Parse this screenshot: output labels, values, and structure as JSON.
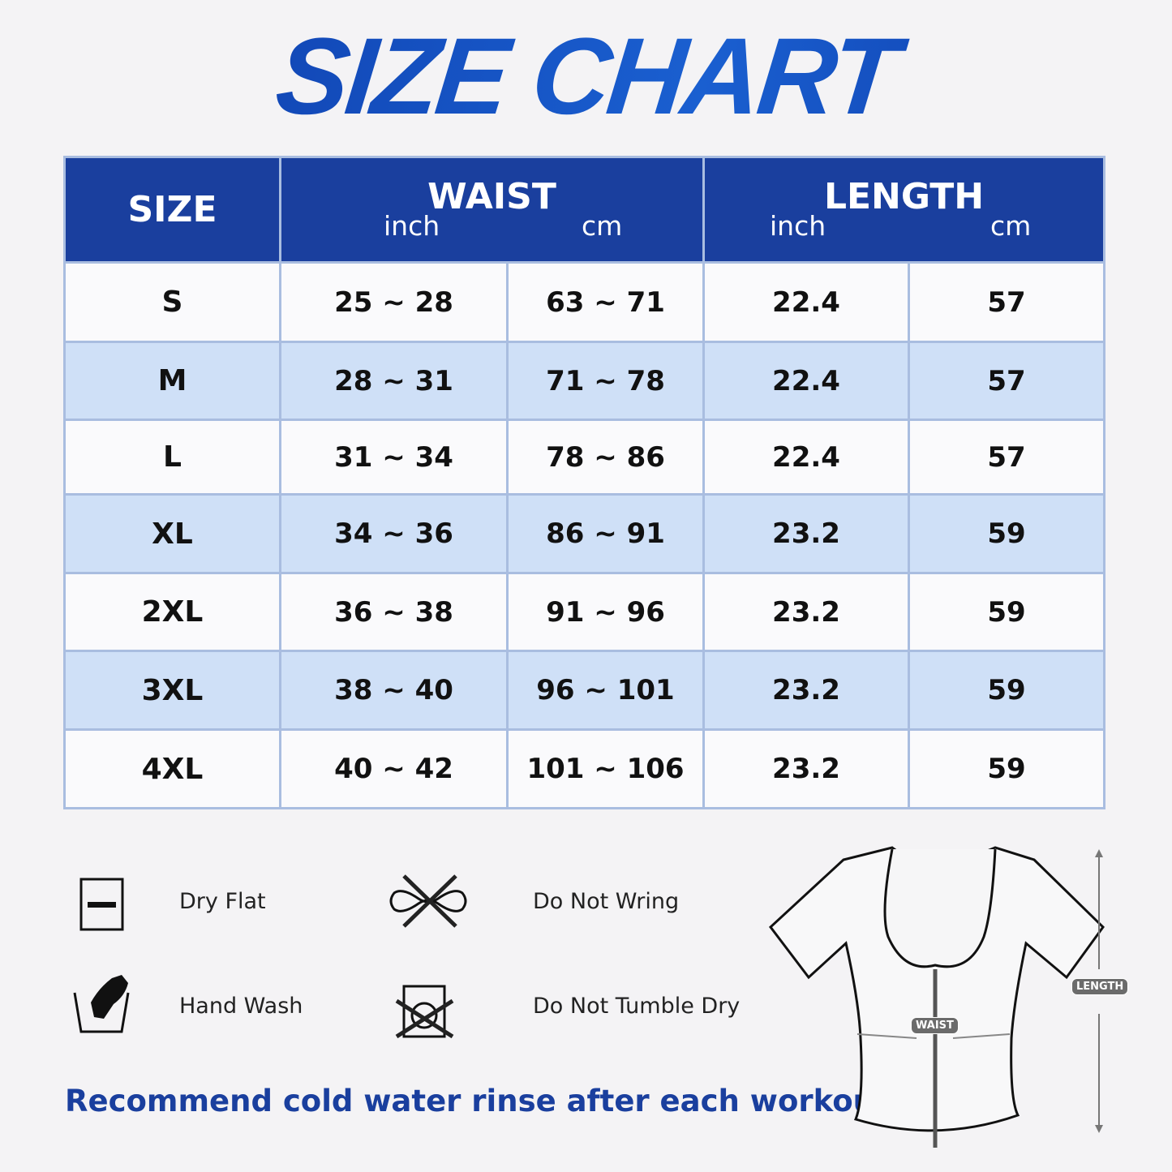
{
  "title": "SIZE CHART",
  "header": {
    "size": "SIZE",
    "waist": "WAIST",
    "length": "LENGTH",
    "inch": "inch",
    "cm": "cm"
  },
  "rows": [
    {
      "size": "S",
      "waist_inch": "25 ~ 28",
      "waist_cm": "63 ~ 71",
      "length_inch": "22.4",
      "length_cm": "57"
    },
    {
      "size": "M",
      "waist_inch": "28 ~ 31",
      "waist_cm": "71 ~ 78",
      "length_inch": "22.4",
      "length_cm": "57"
    },
    {
      "size": "L",
      "waist_inch": "31 ~ 34",
      "waist_cm": "78 ~ 86",
      "length_inch": "22.4",
      "length_cm": "57"
    },
    {
      "size": "XL",
      "waist_inch": "34 ~ 36",
      "waist_cm": "86 ~ 91",
      "length_inch": "23.2",
      "length_cm": "59"
    },
    {
      "size": "2XL",
      "waist_inch": "36 ~ 38",
      "waist_cm": "91 ~ 96",
      "length_inch": "23.2",
      "length_cm": "59"
    },
    {
      "size": "3XL",
      "waist_inch": "38 ~ 40",
      "waist_cm": "96 ~ 101",
      "length_inch": "23.2",
      "length_cm": "59"
    },
    {
      "size": "4XL",
      "waist_inch": "40 ~ 42",
      "waist_cm": "101 ~ 106",
      "length_inch": "23.2",
      "length_cm": "59"
    }
  ],
  "care": [
    {
      "icon": "dry-flat-icon",
      "label": "Dry Flat"
    },
    {
      "icon": "do-not-wring-icon",
      "label": "Do Not Wring"
    },
    {
      "icon": "hand-wash-icon",
      "label": "Hand Wash"
    },
    {
      "icon": "do-not-tumble-dry-icon",
      "label": "Do Not Tumble Dry"
    }
  ],
  "note": "Recommend cold water rinse after each workout.",
  "diagram": {
    "waist_label": "WAIST",
    "length_label": "LENGTH"
  },
  "colors": {
    "header": "#1a3f9e",
    "alt_row": "#cfe0f7",
    "border": "#a9bde0",
    "accent": "#1546b0"
  }
}
